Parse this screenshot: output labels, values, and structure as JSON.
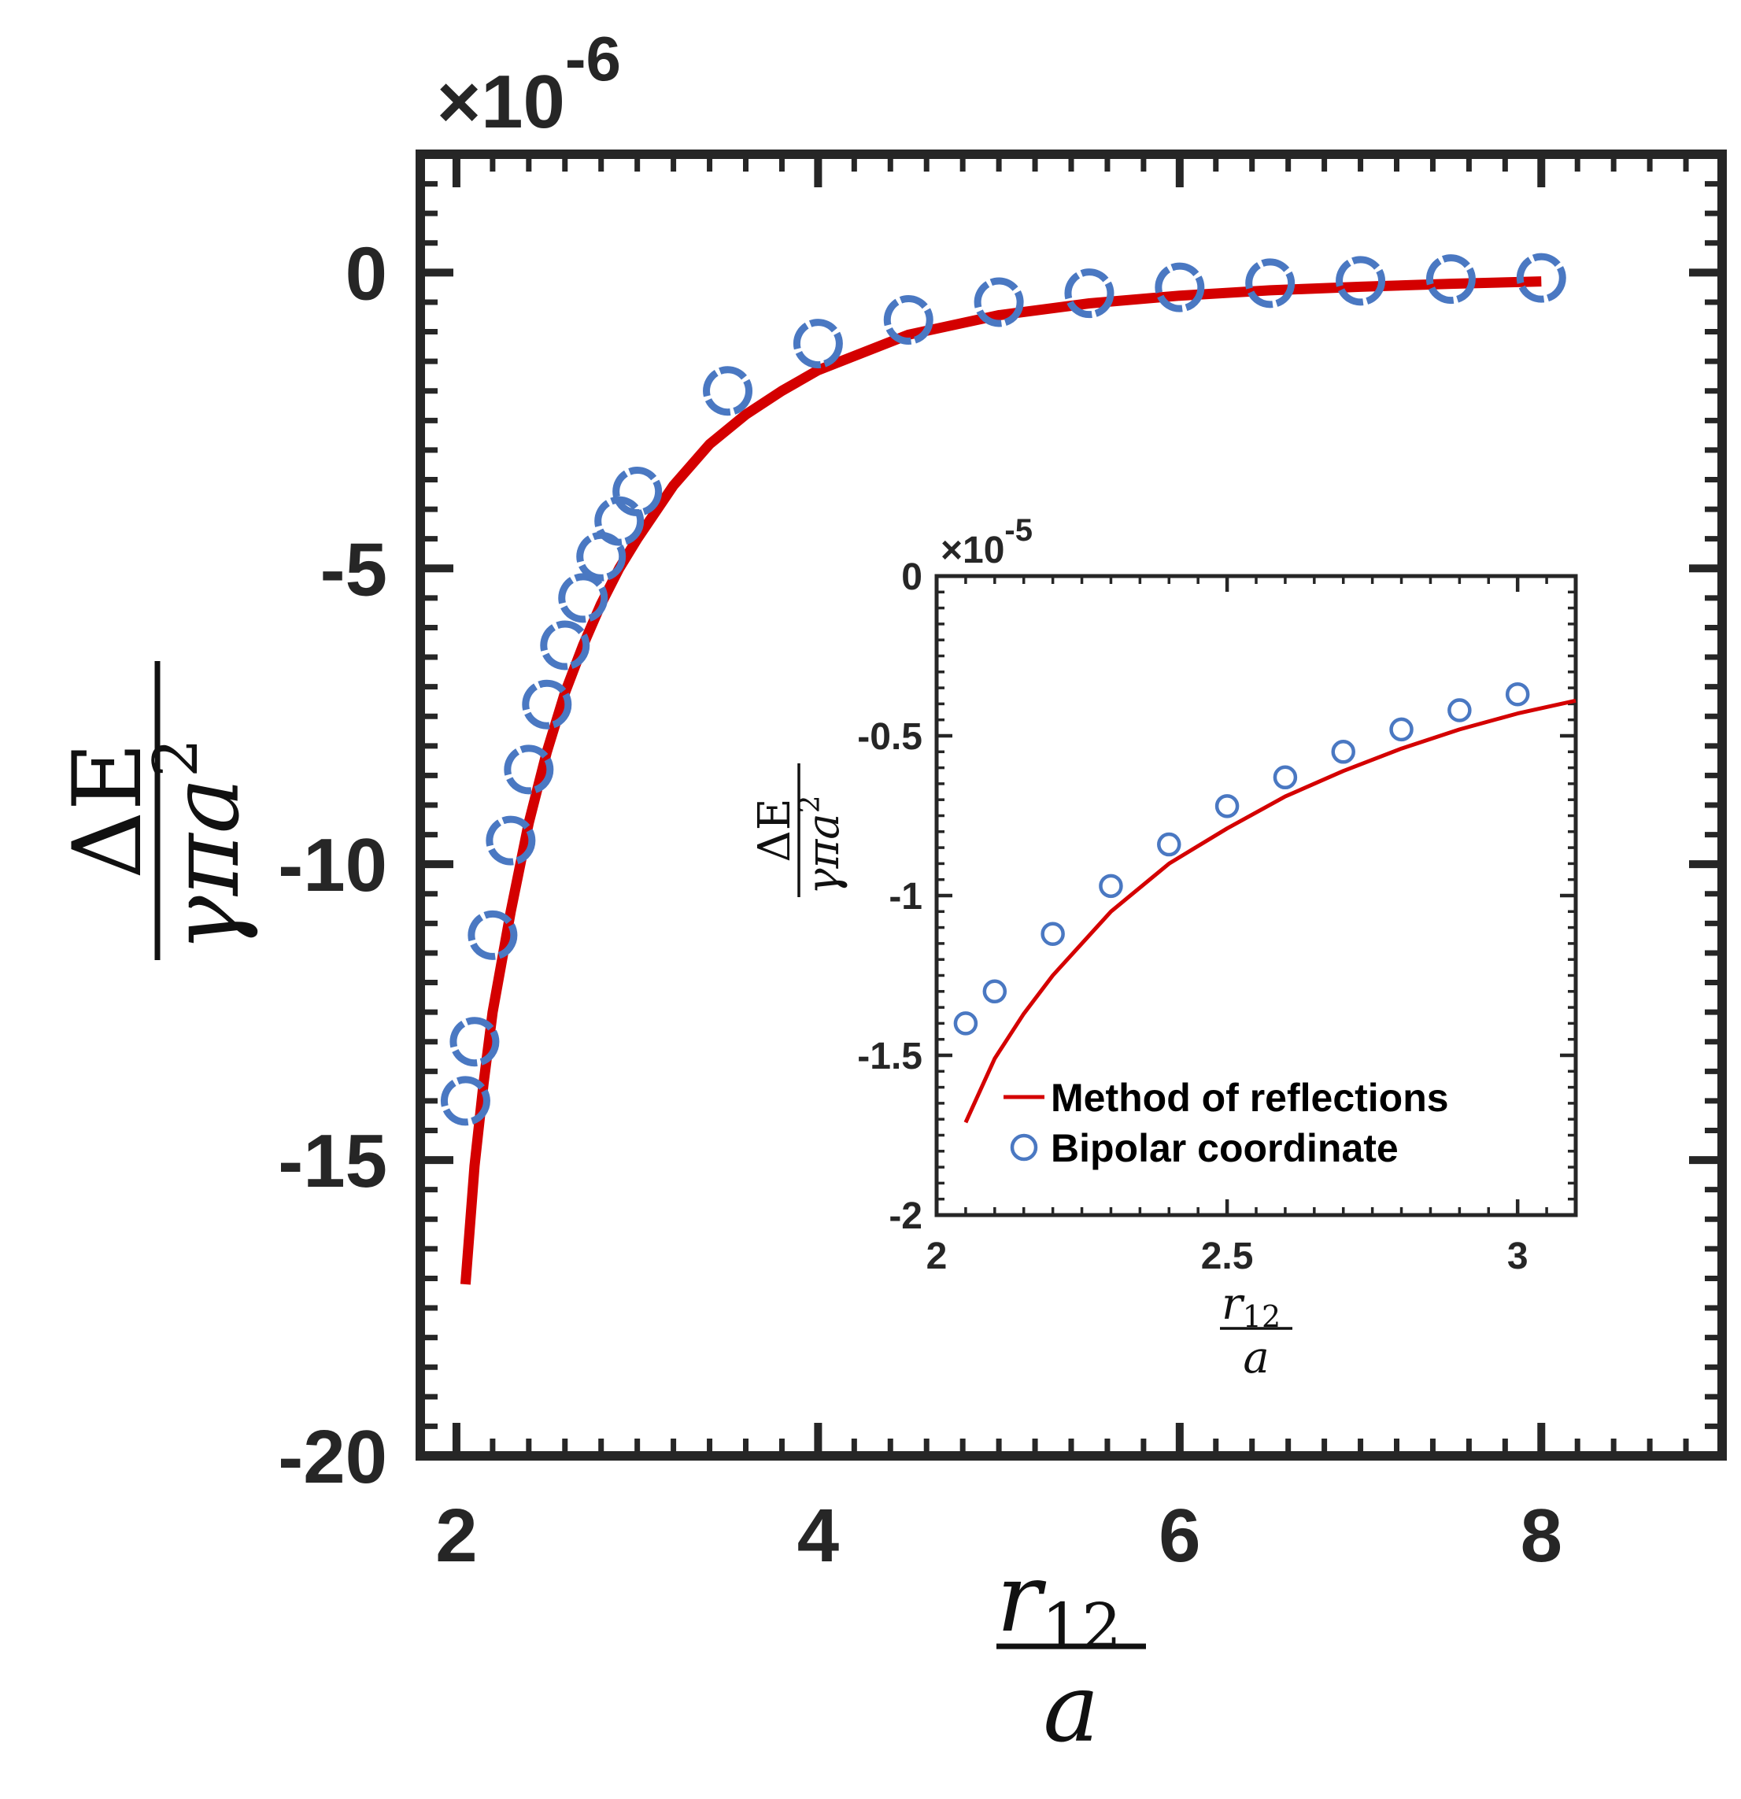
{
  "colors": {
    "line": "#d40000",
    "marker": "#4a78c2",
    "axes": "#262626"
  },
  "chart_data": [
    {
      "id": "main",
      "type": "line",
      "title": "",
      "xlabel": {
        "numerator": "r",
        "subscript": "12",
        "denominator": "a"
      },
      "ylabel": {
        "numerator": "ΔE",
        "denominator": "γπa",
        "superscript": "2"
      },
      "xlim": [
        1.8,
        9.0
      ],
      "ylim": [
        -20,
        2
      ],
      "y_exponent": {
        "base": "×10",
        "power": "-6"
      },
      "xticks": [
        2,
        4,
        6,
        8
      ],
      "xtick_labels": [
        "2",
        "4",
        "6",
        "8"
      ],
      "yticks": [
        -20,
        -15,
        -10,
        -5,
        0
      ],
      "ytick_labels": [
        "-20",
        "-15",
        "-10",
        "-5",
        "0"
      ],
      "series": [
        {
          "name": "Method of reflections",
          "kind": "line",
          "x": [
            2.05,
            2.1,
            2.15,
            2.2,
            2.3,
            2.4,
            2.5,
            2.6,
            2.7,
            2.8,
            2.9,
            3.0,
            3.2,
            3.4,
            3.6,
            3.8,
            4.0,
            4.5,
            5.0,
            5.5,
            6.0,
            6.5,
            7.0,
            7.5,
            8.0
          ],
          "y": [
            -17.1,
            -15.1,
            -13.7,
            -12.5,
            -10.8,
            -9.3,
            -8.1,
            -7.1,
            -6.3,
            -5.6,
            -5.0,
            -4.5,
            -3.6,
            -2.9,
            -2.4,
            -2.0,
            -1.65,
            -1.05,
            -0.72,
            -0.52,
            -0.39,
            -0.3,
            -0.24,
            -0.19,
            -0.15
          ]
        },
        {
          "name": "Bipolar coordinate",
          "kind": "scatter",
          "x": [
            2.05,
            2.1,
            2.2,
            2.3,
            2.4,
            2.5,
            2.6,
            2.7,
            2.8,
            2.9,
            3.0,
            3.5,
            4.0,
            4.5,
            5.0,
            5.5,
            6.0,
            6.5,
            7.0,
            7.5,
            8.0
          ],
          "y": [
            -14.0,
            -13.0,
            -11.2,
            -9.6,
            -8.4,
            -7.3,
            -6.3,
            -5.5,
            -4.8,
            -4.2,
            -3.7,
            -2.0,
            -1.2,
            -0.8,
            -0.5,
            -0.35,
            -0.25,
            -0.18,
            -0.14,
            -0.11,
            -0.09
          ]
        }
      ]
    },
    {
      "id": "inset",
      "type": "line",
      "title": "",
      "xlabel": {
        "numerator": "r",
        "subscript": "12",
        "denominator": "a"
      },
      "ylabel": {
        "numerator": "ΔE",
        "denominator": "γπa",
        "superscript": "2"
      },
      "xlim": [
        2.0,
        3.1
      ],
      "ylim": [
        -2.0,
        0.0
      ],
      "y_exponent": {
        "base": "×10",
        "power": "-5"
      },
      "xticks": [
        2.0,
        2.5,
        3.0
      ],
      "xtick_labels": [
        "2",
        "2.5",
        "3"
      ],
      "yticks": [
        -2.0,
        -1.5,
        -1.0,
        -0.5,
        0.0
      ],
      "ytick_labels": [
        "-2",
        "-1.5",
        "-1",
        "-0.5",
        "0"
      ],
      "legend": {
        "position": "bottom-right",
        "entries": [
          "Method of reflections",
          "Bipolar coordinate"
        ]
      },
      "series": [
        {
          "name": "Method of reflections",
          "kind": "line",
          "x": [
            2.05,
            2.1,
            2.15,
            2.2,
            2.3,
            2.4,
            2.5,
            2.6,
            2.7,
            2.8,
            2.9,
            3.0,
            3.1
          ],
          "y": [
            -1.71,
            -1.51,
            -1.37,
            -1.25,
            -1.05,
            -0.9,
            -0.79,
            -0.69,
            -0.61,
            -0.54,
            -0.48,
            -0.43,
            -0.39
          ]
        },
        {
          "name": "Bipolar coordinate",
          "kind": "scatter",
          "x": [
            2.05,
            2.1,
            2.2,
            2.3,
            2.4,
            2.5,
            2.6,
            2.7,
            2.8,
            2.9,
            3.0
          ],
          "y": [
            -1.4,
            -1.3,
            -1.12,
            -0.97,
            -0.84,
            -0.72,
            -0.63,
            -0.55,
            -0.48,
            -0.42,
            -0.37
          ]
        }
      ]
    }
  ]
}
